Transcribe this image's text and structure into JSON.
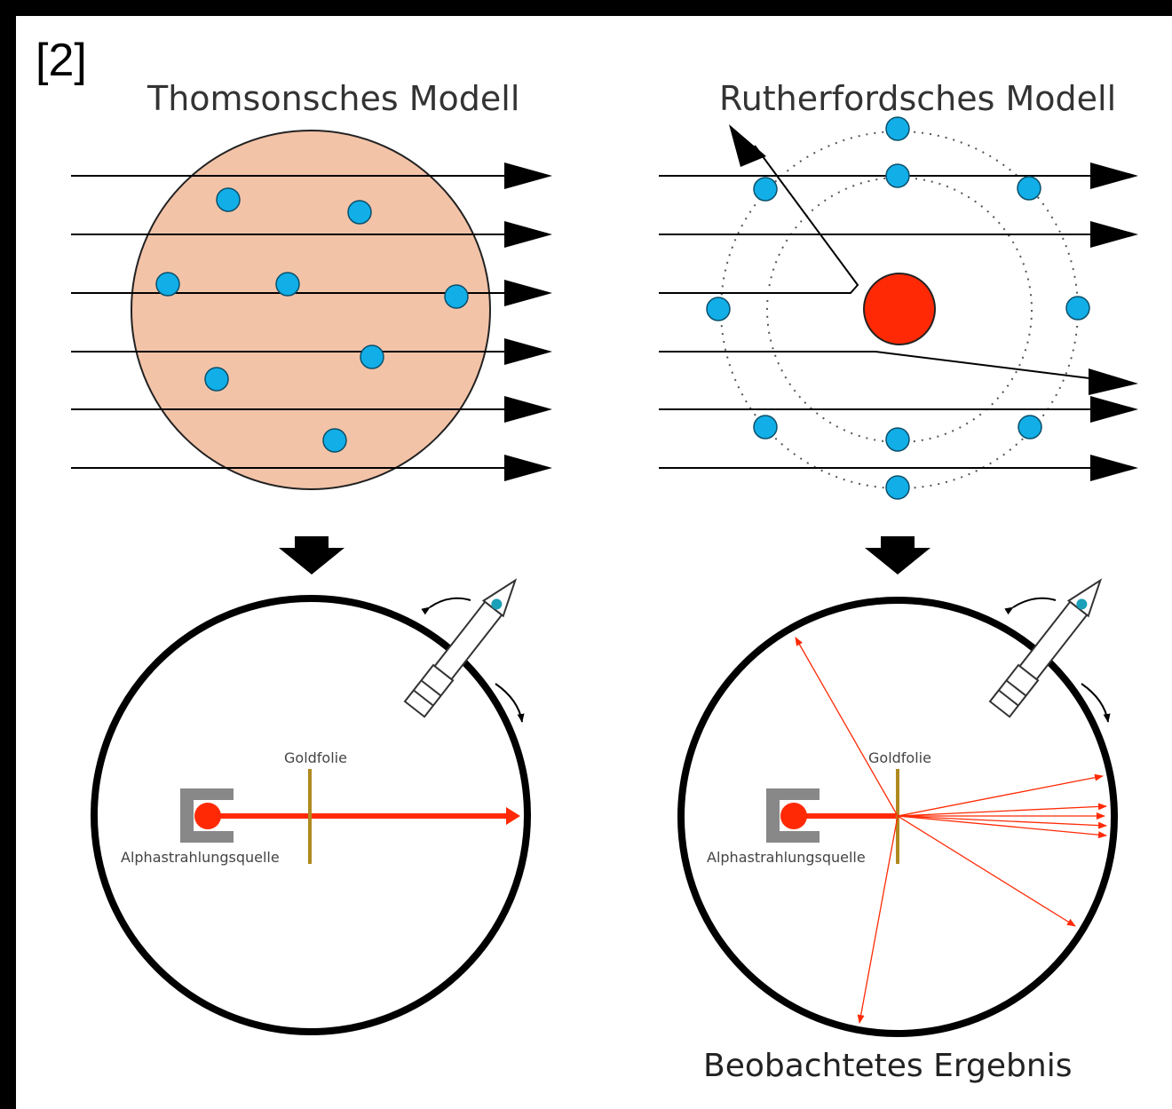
{
  "reference": "[2]",
  "left_panel": {
    "title": "Thomsonsches Modell",
    "foil_label": "Goldfolie",
    "source_label": "Alphastrahlungsquelle"
  },
  "right_panel": {
    "title": "Rutherfordsches Modell",
    "foil_label": "Goldfolie",
    "source_label": "Alphastrahlungsquelle",
    "result_label": "Beobachtetes Ergebnis"
  },
  "colors": {
    "thomson_sphere": "#f3c3a8",
    "electron": "#12aee7",
    "nucleus": "#ff2a05",
    "beam": "#ff2a05",
    "foil": "#b08a20",
    "source_holder": "#888888"
  }
}
